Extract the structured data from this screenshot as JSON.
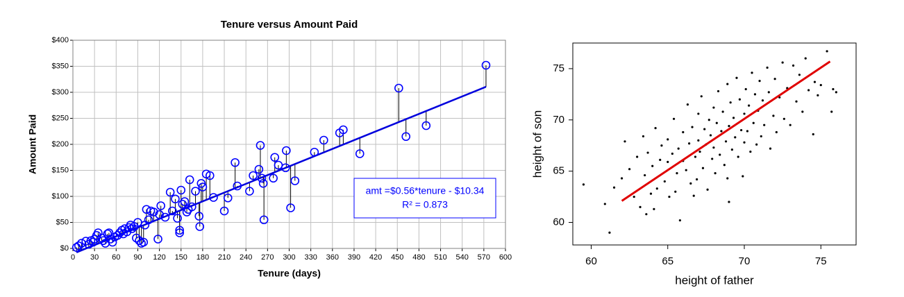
{
  "chart_data": [
    {
      "type": "scatter",
      "title": "Tenure versus Amount Paid",
      "x_label": "Tenure (days)",
      "y_label": "Amount Paid",
      "marker": "open-circle",
      "color": "#0000ff",
      "residuals": true,
      "grid": true,
      "xlim": [
        0,
        600
      ],
      "ylim": [
        0,
        400
      ],
      "xticks": [
        0,
        30,
        60,
        90,
        120,
        150,
        180,
        210,
        240,
        270,
        300,
        330,
        360,
        390,
        420,
        450,
        480,
        510,
        540,
        570,
        600
      ],
      "yticks": [
        {
          "value": 0,
          "label": "$0"
        },
        {
          "value": 50,
          "label": "$50"
        },
        {
          "value": 100,
          "label": "$100"
        },
        {
          "value": 150,
          "label": "$150"
        },
        {
          "value": 200,
          "label": "$200"
        },
        {
          "value": 250,
          "label": "$250"
        },
        {
          "value": 300,
          "label": "$300"
        },
        {
          "value": 350,
          "label": "$350"
        },
        {
          "value": 400,
          "label": "$400"
        }
      ],
      "trend": {
        "slope": 0.56,
        "intercept": -10.34,
        "x": [
          5,
          573
        ],
        "color": "#0000dd"
      },
      "annotations": [
        "amt =$0.56*tenure - $10.34",
        "R² = 0.873"
      ],
      "x": [
        5,
        8,
        12,
        18,
        22,
        25,
        28,
        30,
        33,
        35,
        40,
        42,
        45,
        48,
        50,
        52,
        55,
        58,
        62,
        65,
        68,
        70,
        72,
        75,
        78,
        80,
        82,
        85,
        88,
        90,
        92,
        95,
        98,
        100,
        102,
        105,
        108,
        112,
        118,
        120,
        122,
        128,
        135,
        138,
        142,
        145,
        148,
        148,
        150,
        152,
        155,
        158,
        160,
        162,
        165,
        170,
        175,
        176,
        178,
        180,
        185,
        190,
        195,
        210,
        215,
        225,
        228,
        245,
        250,
        258,
        260,
        262,
        264,
        265,
        278,
        280,
        285,
        295,
        296,
        302,
        308,
        335,
        348,
        370,
        375,
        398,
        452,
        462,
        490,
        573
      ],
      "values": [
        2,
        5,
        10,
        14,
        8,
        15,
        12,
        18,
        25,
        30,
        20,
        15,
        10,
        28,
        30,
        18,
        12,
        22,
        25,
        30,
        35,
        28,
        38,
        32,
        40,
        45,
        38,
        42,
        20,
        50,
        15,
        10,
        12,
        45,
        75,
        55,
        72,
        70,
        18,
        65,
        82,
        60,
        108,
        72,
        95,
        58,
        35,
        30,
        112,
        85,
        90,
        70,
        75,
        132,
        80,
        110,
        62,
        42,
        125,
        118,
        143,
        140,
        98,
        72,
        97,
        165,
        120,
        110,
        140,
        152,
        198,
        135,
        125,
        55,
        135,
        175,
        160,
        155,
        188,
        78,
        130,
        185,
        208,
        222,
        228,
        182,
        308,
        215,
        236,
        352
      ]
    },
    {
      "type": "scatter",
      "x_label": "height of father",
      "y_label": "height of son",
      "marker": "dot",
      "color": "#000000",
      "residuals": false,
      "grid": false,
      "xlim": [
        58.8,
        77.3
      ],
      "ylim": [
        57.8,
        77.5
      ],
      "xticks": [
        60,
        65,
        70,
        75
      ],
      "yticks": [
        60,
        65,
        70,
        75
      ],
      "fit": {
        "x": [
          62,
          75.6
        ],
        "y": [
          62.1,
          75.7
        ],
        "color": "#e00000"
      },
      "x": [
        59.5,
        60.9,
        61.2,
        61.5,
        62,
        62.2,
        62.5,
        62.8,
        63,
        63.2,
        63.4,
        63.5,
        63.7,
        63.9,
        64,
        64.2,
        64.3,
        64.5,
        64.6,
        64.8,
        65,
        65,
        65.1,
        65.3,
        65.4,
        65.6,
        65.7,
        65.8,
        66,
        66,
        66.2,
        66.3,
        66.4,
        66.5,
        66.6,
        66.8,
        66.9,
        67,
        67,
        67.1,
        67.2,
        67.3,
        67.4,
        67.5,
        67.6,
        67.7,
        67.8,
        67.9,
        68,
        68,
        68.1,
        68.2,
        68.3,
        68.4,
        68.5,
        68.6,
        68.7,
        68.8,
        68.9,
        69,
        69,
        69.1,
        69.2,
        69.3,
        69.4,
        69.5,
        69.6,
        69.7,
        69.8,
        69.9,
        70,
        70,
        70.1,
        70.2,
        70.3,
        70.4,
        70.5,
        70.6,
        70.7,
        70.8,
        70.9,
        71,
        71.1,
        71.2,
        71.3,
        71.5,
        71.6,
        71.7,
        71.9,
        72,
        72.1,
        72.3,
        72.5,
        72.6,
        72.8,
        73,
        73.2,
        73.4,
        73.6,
        73.8,
        74,
        74.2,
        74.5,
        74.6,
        74.8,
        75,
        75.4,
        75.7,
        75.8,
        76,
        65.5,
        64.1,
        63.6,
        66.7,
        68.9
      ],
      "values": [
        63.7,
        61.8,
        59,
        63.4,
        64.3,
        67.9,
        65.2,
        62.5,
        66.4,
        61.5,
        68.4,
        64.6,
        66.8,
        62.8,
        65.5,
        69.2,
        63.3,
        66.1,
        67.5,
        64,
        65.9,
        68.1,
        62.5,
        66.7,
        70.1,
        64.8,
        67.2,
        60.2,
        66,
        68.8,
        65.1,
        71.5,
        67.7,
        63.8,
        69.3,
        66.4,
        64.2,
        68,
        70.6,
        66.9,
        72.3,
        65.3,
        69.1,
        67.6,
        63.2,
        70,
        68.5,
        66.2,
        71.2,
        67.3,
        64.8,
        69.7,
        72.8,
        66.6,
        68.9,
        70.8,
        65.6,
        67.9,
        73.5,
        69.4,
        62,
        71.7,
        67.1,
        70.2,
        68.3,
        74.1,
        66.4,
        72,
        69,
        64.5,
        70.6,
        67.8,
        73,
        68.9,
        71.4,
        66.9,
        74.6,
        69.7,
        72.5,
        67.6,
        70.9,
        73.8,
        68.4,
        71.9,
        69.5,
        75.1,
        72.7,
        67.2,
        70.4,
        74,
        68.8,
        72.2,
        75.6,
        70.1,
        73.1,
        69.5,
        75.3,
        71.8,
        74.4,
        70.8,
        76,
        72.9,
        68.6,
        73.7,
        72.4,
        73.4,
        76.7,
        70.8,
        73,
        72.7,
        63,
        61.3,
        60.8,
        62.6,
        64.3
      ]
    }
  ]
}
